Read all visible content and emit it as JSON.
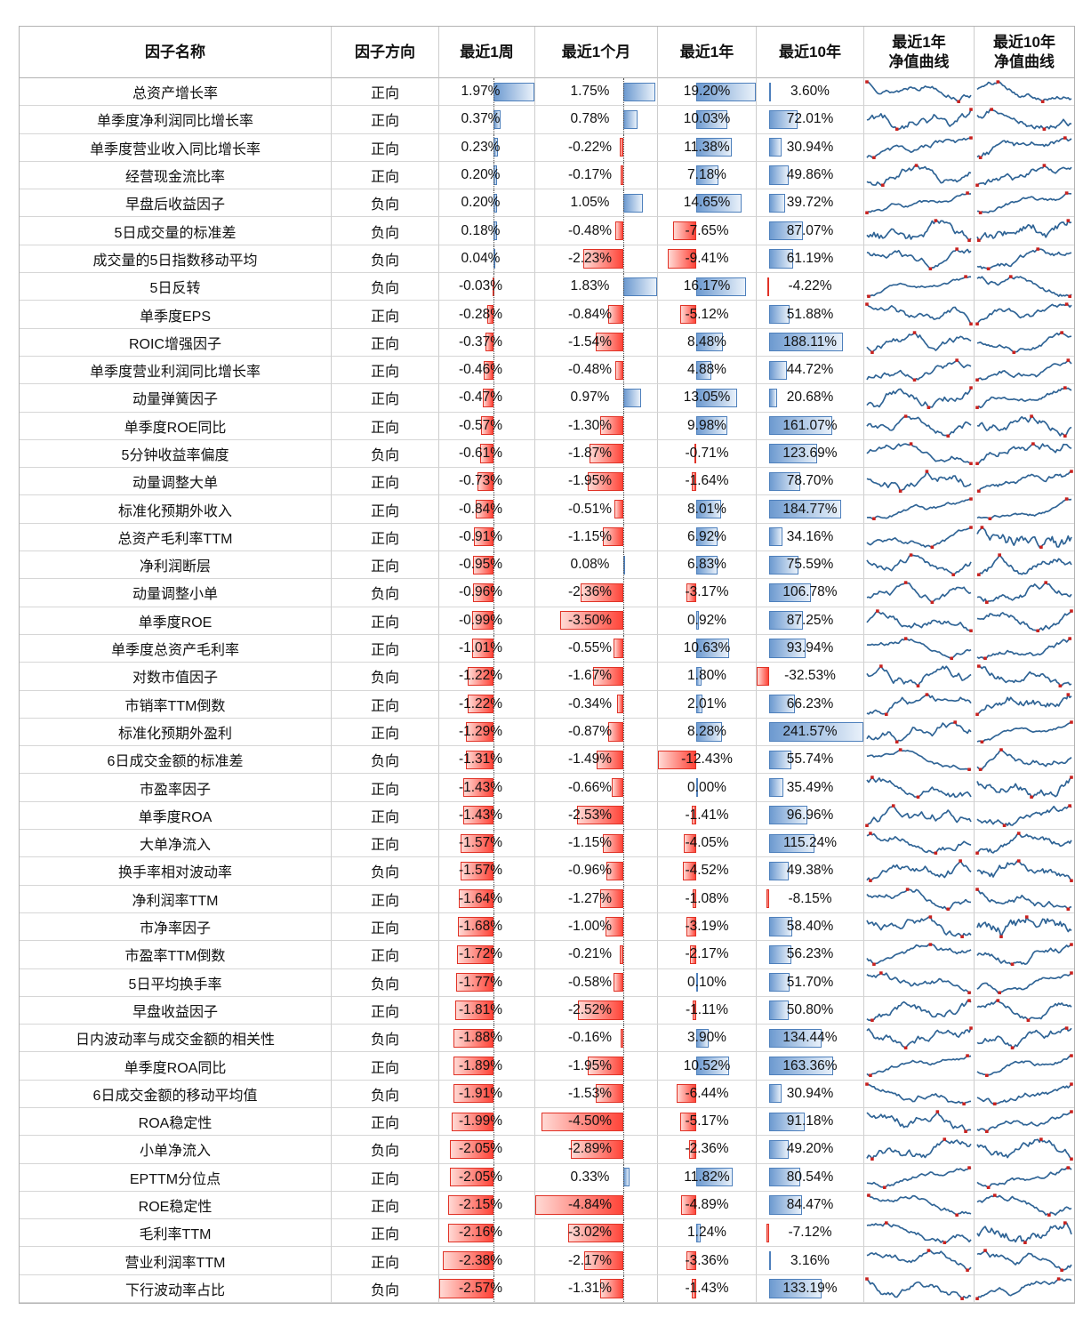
{
  "chart_data": {
    "type": "table",
    "title": "",
    "columns": [
      {
        "key": "name",
        "label": "因子名称"
      },
      {
        "key": "direction",
        "label": "因子方向"
      },
      {
        "key": "w1",
        "label": "最近1周"
      },
      {
        "key": "m1",
        "label": "最近1个月"
      },
      {
        "key": "y1",
        "label": "最近1年"
      },
      {
        "key": "y10",
        "label": "最近10年"
      },
      {
        "key": "spark1",
        "label": "最近1年",
        "label2": "净值曲线"
      },
      {
        "key": "spark10",
        "label": "最近10年",
        "label2": "净值曲线"
      }
    ],
    "rows": [
      [
        "总资产增长率",
        "正向",
        "1.97%",
        "1.75%",
        "19.20%",
        "3.60%"
      ],
      [
        "单季度净利润同比增长率",
        "正向",
        "0.37%",
        "0.78%",
        "10.03%",
        "72.01%"
      ],
      [
        "单季度营业收入同比增长率",
        "正向",
        "0.23%",
        "-0.22%",
        "11.38%",
        "30.94%"
      ],
      [
        "经营现金流比率",
        "正向",
        "0.20%",
        "-0.17%",
        "7.18%",
        "49.86%"
      ],
      [
        "早盘后收益因子",
        "负向",
        "0.20%",
        "1.05%",
        "14.65%",
        "39.72%"
      ],
      [
        "5日成交量的标准差",
        "负向",
        "0.18%",
        "-0.48%",
        "-7.65%",
        "87.07%"
      ],
      [
        "成交量的5日指数移动平均",
        "负向",
        "0.04%",
        "-2.23%",
        "-9.41%",
        "61.19%"
      ],
      [
        "5日反转",
        "负向",
        "-0.03%",
        "1.83%",
        "16.17%",
        "-4.22%"
      ],
      [
        "单季度EPS",
        "正向",
        "-0.28%",
        "-0.84%",
        "-5.12%",
        "51.88%"
      ],
      [
        "ROIC增强因子",
        "正向",
        "-0.37%",
        "-1.54%",
        "8.48%",
        "188.11%"
      ],
      [
        "单季度营业利润同比增长率",
        "正向",
        "-0.46%",
        "-0.48%",
        "4.88%",
        "44.72%"
      ],
      [
        "动量弹簧因子",
        "正向",
        "-0.47%",
        "0.97%",
        "13.05%",
        "20.68%"
      ],
      [
        "单季度ROE同比",
        "正向",
        "-0.57%",
        "-1.30%",
        "9.98%",
        "161.07%"
      ],
      [
        "5分钟收益率偏度",
        "负向",
        "-0.61%",
        "-1.87%",
        "-0.71%",
        "123.69%"
      ],
      [
        "动量调整大单",
        "正向",
        "-0.73%",
        "-1.95%",
        "-1.64%",
        "78.70%"
      ],
      [
        "标准化预期外收入",
        "正向",
        "-0.84%",
        "-0.51%",
        "8.01%",
        "184.77%"
      ],
      [
        "总资产毛利率TTM",
        "正向",
        "-0.91%",
        "-1.15%",
        "6.92%",
        "34.16%"
      ],
      [
        "净利润断层",
        "正向",
        "-0.95%",
        "0.08%",
        "6.83%",
        "75.59%"
      ],
      [
        "动量调整小单",
        "负向",
        "-0.96%",
        "-2.36%",
        "-3.17%",
        "106.78%"
      ],
      [
        "单季度ROE",
        "正向",
        "-0.99%",
        "-3.50%",
        "0.92%",
        "87.25%"
      ],
      [
        "单季度总资产毛利率",
        "正向",
        "-1.01%",
        "-0.55%",
        "10.63%",
        "93.94%"
      ],
      [
        "对数市值因子",
        "负向",
        "-1.22%",
        "-1.67%",
        "1.80%",
        "-32.53%"
      ],
      [
        "市销率TTM倒数",
        "正向",
        "-1.22%",
        "-0.34%",
        "2.01%",
        "66.23%"
      ],
      [
        "标准化预期外盈利",
        "正向",
        "-1.29%",
        "-0.87%",
        "8.28%",
        "241.57%"
      ],
      [
        "6日成交金额的标准差",
        "负向",
        "-1.31%",
        "-1.49%",
        "-12.43%",
        "55.74%"
      ],
      [
        "市盈率因子",
        "正向",
        "-1.43%",
        "-0.66%",
        "0.00%",
        "35.49%"
      ],
      [
        "单季度ROA",
        "正向",
        "-1.43%",
        "-2.53%",
        "-1.41%",
        "96.96%"
      ],
      [
        "大单净流入",
        "正向",
        "-1.57%",
        "-1.15%",
        "-4.05%",
        "115.24%"
      ],
      [
        "换手率相对波动率",
        "负向",
        "-1.57%",
        "-0.96%",
        "-4.52%",
        "49.38%"
      ],
      [
        "净利润率TTM",
        "正向",
        "-1.64%",
        "-1.27%",
        "-1.08%",
        "-8.15%"
      ],
      [
        "市净率因子",
        "正向",
        "-1.68%",
        "-1.00%",
        "-3.19%",
        "58.40%"
      ],
      [
        "市盈率TTM倒数",
        "正向",
        "-1.72%",
        "-0.21%",
        "-2.17%",
        "56.23%"
      ],
      [
        "5日平均换手率",
        "负向",
        "-1.77%",
        "-0.58%",
        "0.10%",
        "51.70%"
      ],
      [
        "早盘收益因子",
        "正向",
        "-1.81%",
        "-2.52%",
        "-1.11%",
        "50.80%"
      ],
      [
        "日内波动率与成交金额的相关性",
        "负向",
        "-1.88%",
        "-0.16%",
        "3.90%",
        "134.44%"
      ],
      [
        "单季度ROA同比",
        "正向",
        "-1.89%",
        "-1.95%",
        "10.52%",
        "163.36%"
      ],
      [
        "6日成交金额的移动平均值",
        "负向",
        "-1.91%",
        "-1.53%",
        "-6.44%",
        "30.94%"
      ],
      [
        "ROA稳定性",
        "正向",
        "-1.99%",
        "-4.50%",
        "-5.17%",
        "91.18%"
      ],
      [
        "小单净流入",
        "负向",
        "-2.05%",
        "-2.89%",
        "-2.36%",
        "49.20%"
      ],
      [
        "EPTTM分位点",
        "正向",
        "-2.05%",
        "0.33%",
        "11.82%",
        "80.54%"
      ],
      [
        "ROE稳定性",
        "正向",
        "-2.15%",
        "-4.84%",
        "-4.89%",
        "84.47%"
      ],
      [
        "毛利率TTM",
        "正向",
        "-2.16%",
        "-3.02%",
        "1.24%",
        "-7.12%"
      ],
      [
        "营业利润率TTM",
        "正向",
        "-2.38%",
        "-2.17%",
        "-3.36%",
        "3.16%"
      ],
      [
        "下行波动率占比",
        "负向",
        "-2.57%",
        "-1.31%",
        "-1.43%",
        "133.19%"
      ]
    ],
    "direction_values": [
      "正向",
      "负向"
    ],
    "databars": {
      "positive_fill": "#6d9ad0",
      "positive_border": "#4e80bc",
      "negative_fill": "#ff4438",
      "negative_border": "#e03226",
      "axis": "automatic (dotted line shown in 最近1周 and 最近1个月 columns)"
    },
    "sparklines": {
      "line_color": "#2e6395",
      "marker_color": "#c9211e",
      "markers": "high point and low point",
      "note": "net-value curves over last 1 year / last 10 years"
    }
  }
}
